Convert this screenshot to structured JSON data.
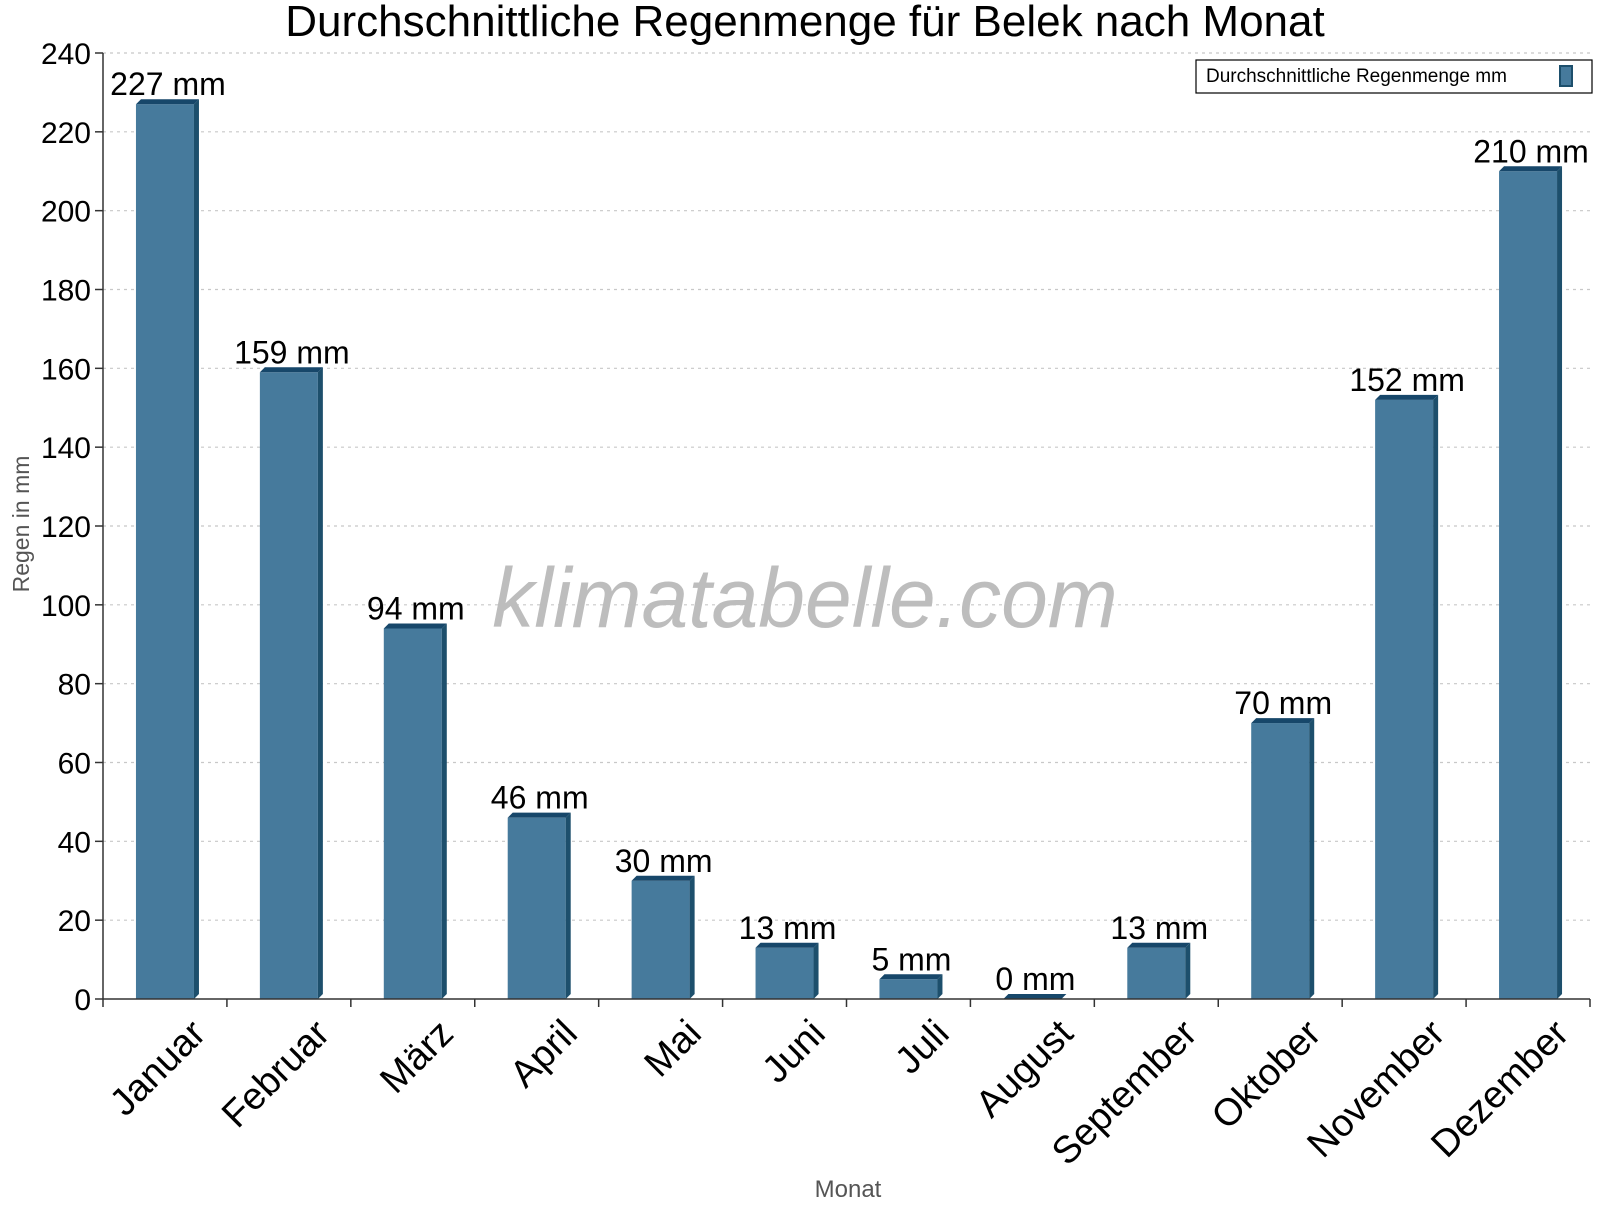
{
  "chart_data": {
    "type": "bar",
    "title": "Durchschnittliche Regenmenge für Belek nach Monat",
    "xlabel": "Monat",
    "ylabel": "Regen in mm",
    "ylim": [
      0,
      240
    ],
    "yticks": [
      0,
      20,
      40,
      60,
      80,
      100,
      120,
      140,
      160,
      180,
      200,
      220,
      240
    ],
    "grid": true,
    "legend_position": "top-right",
    "categories": [
      "Januar",
      "Februar",
      "März",
      "April",
      "Mai",
      "Juni",
      "Juli",
      "August",
      "September",
      "Oktober",
      "November",
      "Dezember"
    ],
    "series": [
      {
        "name": "Durchschnittliche Regenmenge mm",
        "values": [
          227,
          159,
          94,
          46,
          30,
          13,
          5,
          0,
          13,
          70,
          152,
          210
        ],
        "labels": [
          "227 mm",
          "159 mm",
          "94 mm",
          "46 mm",
          "30 mm",
          "13 mm",
          "5 mm",
          "0 mm",
          "13 mm",
          "70 mm",
          "152 mm",
          "210 mm"
        ]
      }
    ],
    "watermark": "klimatabelle.com",
    "colors": {
      "bar": "#467a9c",
      "bar_side": "#1d4f6c",
      "bar_top": "#17476a",
      "grid": "#c8c8c8",
      "axis": "#333333",
      "axis_label": "#555555",
      "watermark": "#bdbdbd"
    }
  }
}
